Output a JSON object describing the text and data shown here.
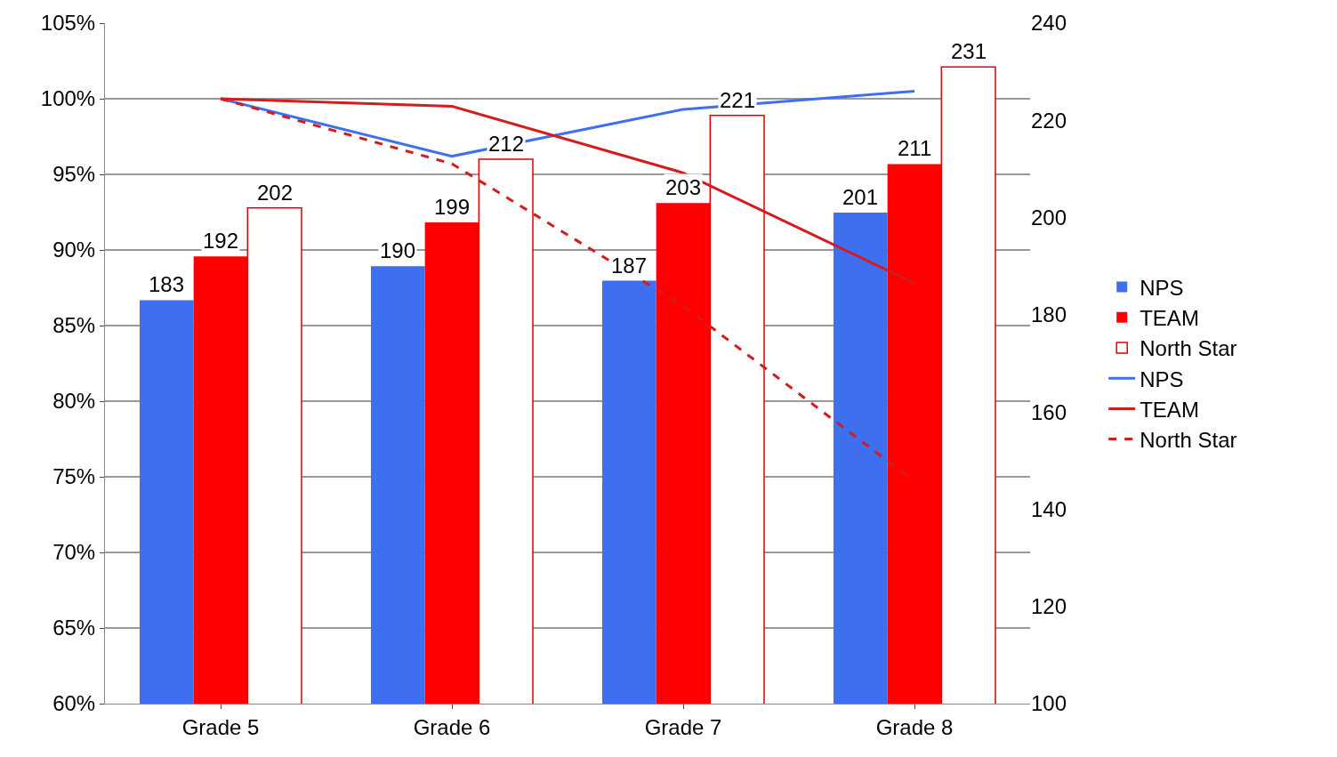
{
  "chart_data": {
    "type": "bar",
    "categories": [
      "Grade 5",
      "Grade 6",
      "Grade 7",
      "Grade 8"
    ],
    "series": [
      {
        "name": "NPS",
        "axis": "y2",
        "color": "#3d6ff0",
        "values": [
          183,
          190,
          187,
          201
        ],
        "value_labels": [
          "183",
          "190",
          "187",
          "201"
        ]
      },
      {
        "name": "TEAM",
        "axis": "y2",
        "color": "#ff0000",
        "values": [
          192,
          199,
          203,
          211
        ],
        "value_labels": [
          "192",
          "199",
          "203",
          "211"
        ]
      },
      {
        "name": "North Star",
        "axis": "y2",
        "color": "#ffffff",
        "values": [
          202,
          212,
          221,
          231
        ],
        "value_labels": [
          "202",
          "212",
          "221",
          "231"
        ]
      },
      {
        "name": "NPS",
        "type": "line",
        "axis": "y",
        "color": "#3d6ff0",
        "line_style": "solid",
        "values": [
          100,
          96.2,
          99.3,
          100.5
        ]
      },
      {
        "name": "TEAM",
        "type": "line",
        "axis": "y",
        "color": "#d41c1c",
        "line_style": "solid",
        "values": [
          100,
          99.5,
          95.1,
          87.8
        ]
      },
      {
        "name": "North Star",
        "type": "line",
        "axis": "y",
        "color": "#d41c1c",
        "line_style": "dashed",
        "values": [
          100,
          95.7,
          86.3,
          74.7
        ]
      }
    ],
    "ylim": [
      60,
      105
    ],
    "yticks": [
      {
        "value": 60,
        "label": "60%"
      },
      {
        "value": 65,
        "label": "65%"
      },
      {
        "value": 70,
        "label": "70%"
      },
      {
        "value": 75,
        "label": "75%"
      },
      {
        "value": 80,
        "label": "80%"
      },
      {
        "value": 85,
        "label": "85%"
      },
      {
        "value": 90,
        "label": "90%"
      },
      {
        "value": 95,
        "label": "95%"
      },
      {
        "value": 100,
        "label": "100%"
      },
      {
        "value": 105,
        "label": "105%"
      }
    ],
    "y2lim": [
      100,
      240
    ],
    "y2ticks": [
      100,
      120,
      140,
      160,
      180,
      200,
      220,
      240
    ],
    "grid": "y",
    "legend": "right",
    "marker": "none"
  }
}
